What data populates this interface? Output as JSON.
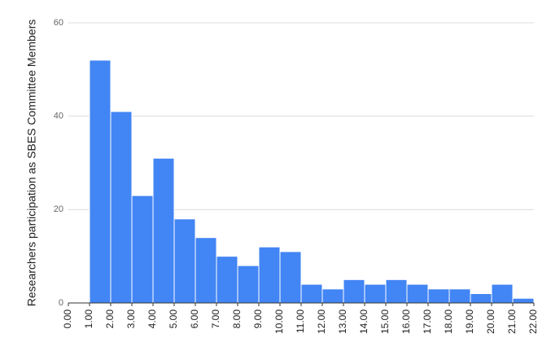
{
  "chart_data": {
    "type": "histogram",
    "y_label": "Researchers participation as SBES Committee Members",
    "bins": [
      0,
      1,
      2,
      3,
      4,
      5,
      6,
      7,
      8,
      9,
      10,
      11,
      12,
      13,
      14,
      15,
      16,
      17,
      18,
      19,
      20,
      21,
      22
    ],
    "values": [
      0,
      52,
      41,
      23,
      31,
      18,
      14,
      10,
      8,
      12,
      11,
      4,
      3,
      5,
      4,
      5,
      4,
      3,
      3,
      2,
      4,
      1
    ],
    "color": "#4285f4",
    "xlim": [
      0,
      22
    ],
    "xticks": [
      {
        "value": 0,
        "label": "0.00"
      },
      {
        "value": 1,
        "label": "1.00"
      },
      {
        "value": 2,
        "label": "2.00"
      },
      {
        "value": 3,
        "label": "3.00"
      },
      {
        "value": 4,
        "label": "4.00"
      },
      {
        "value": 5,
        "label": "5.00"
      },
      {
        "value": 6,
        "label": "6.00"
      },
      {
        "value": 7,
        "label": "7.00"
      },
      {
        "value": 8,
        "label": "8.00"
      },
      {
        "value": 9,
        "label": "9.00"
      },
      {
        "value": 10,
        "label": "10.00"
      },
      {
        "value": 11,
        "label": "11.00"
      },
      {
        "value": 12,
        "label": "12.00"
      },
      {
        "value": 13,
        "label": "13.00"
      },
      {
        "value": 14,
        "label": "14.00"
      },
      {
        "value": 15,
        "label": "15.00"
      },
      {
        "value": 16,
        "label": "16.00"
      },
      {
        "value": 17,
        "label": "17.00"
      },
      {
        "value": 18,
        "label": "18.00"
      },
      {
        "value": 19,
        "label": "19.00"
      },
      {
        "value": 20,
        "label": "20.00"
      },
      {
        "value": 21,
        "label": "21.00"
      },
      {
        "value": 22,
        "label": "22.00"
      }
    ],
    "ylim": [
      0,
      60
    ],
    "yticks": [
      0,
      20,
      40,
      60
    ],
    "grid": true
  }
}
